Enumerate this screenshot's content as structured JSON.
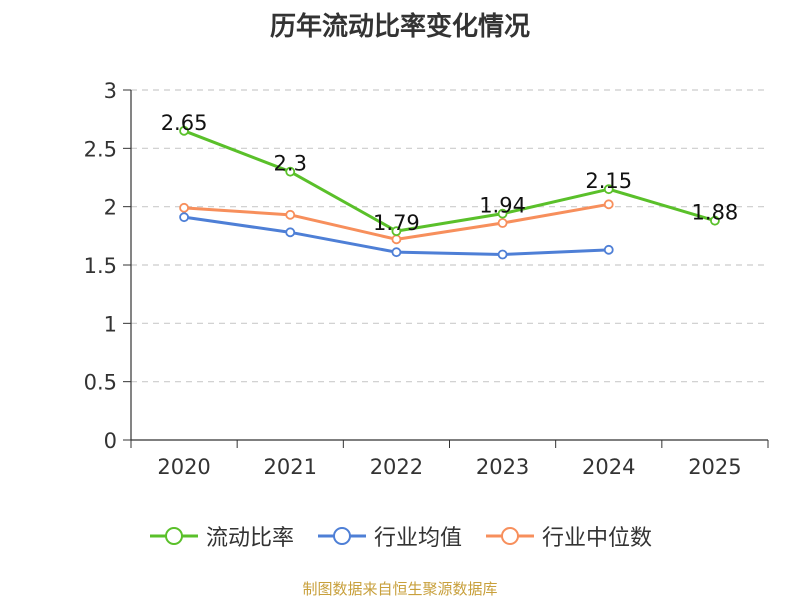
{
  "chart_data": {
    "type": "line",
    "title": "历年流动比率变化情况",
    "categories": [
      "2020",
      "2021",
      "2022",
      "2023",
      "2024",
      "2025"
    ],
    "y_ticks": [
      "0",
      "0.5",
      "1",
      "1.5",
      "2",
      "2.5",
      "3"
    ],
    "ylim": [
      0,
      3
    ],
    "grid": true,
    "legend_position": "bottom",
    "series": [
      {
        "name": "流动比率",
        "color": "#5ac02a",
        "values": [
          2.65,
          2.3,
          1.79,
          1.94,
          2.15,
          1.88
        ],
        "labels": [
          "2.65",
          "2.3",
          "1.79",
          "1.94",
          "2.15",
          "1.88"
        ]
      },
      {
        "name": "行业均值",
        "color": "#4e7fd6",
        "values": [
          1.91,
          1.78,
          1.61,
          1.59,
          1.63,
          null
        ]
      },
      {
        "name": "行业中位数",
        "color": "#f78f5c",
        "values": [
          1.99,
          1.93,
          1.72,
          1.86,
          2.02,
          null
        ]
      }
    ]
  },
  "footer": {
    "source": "制图数据来自恒生聚源数据库"
  }
}
